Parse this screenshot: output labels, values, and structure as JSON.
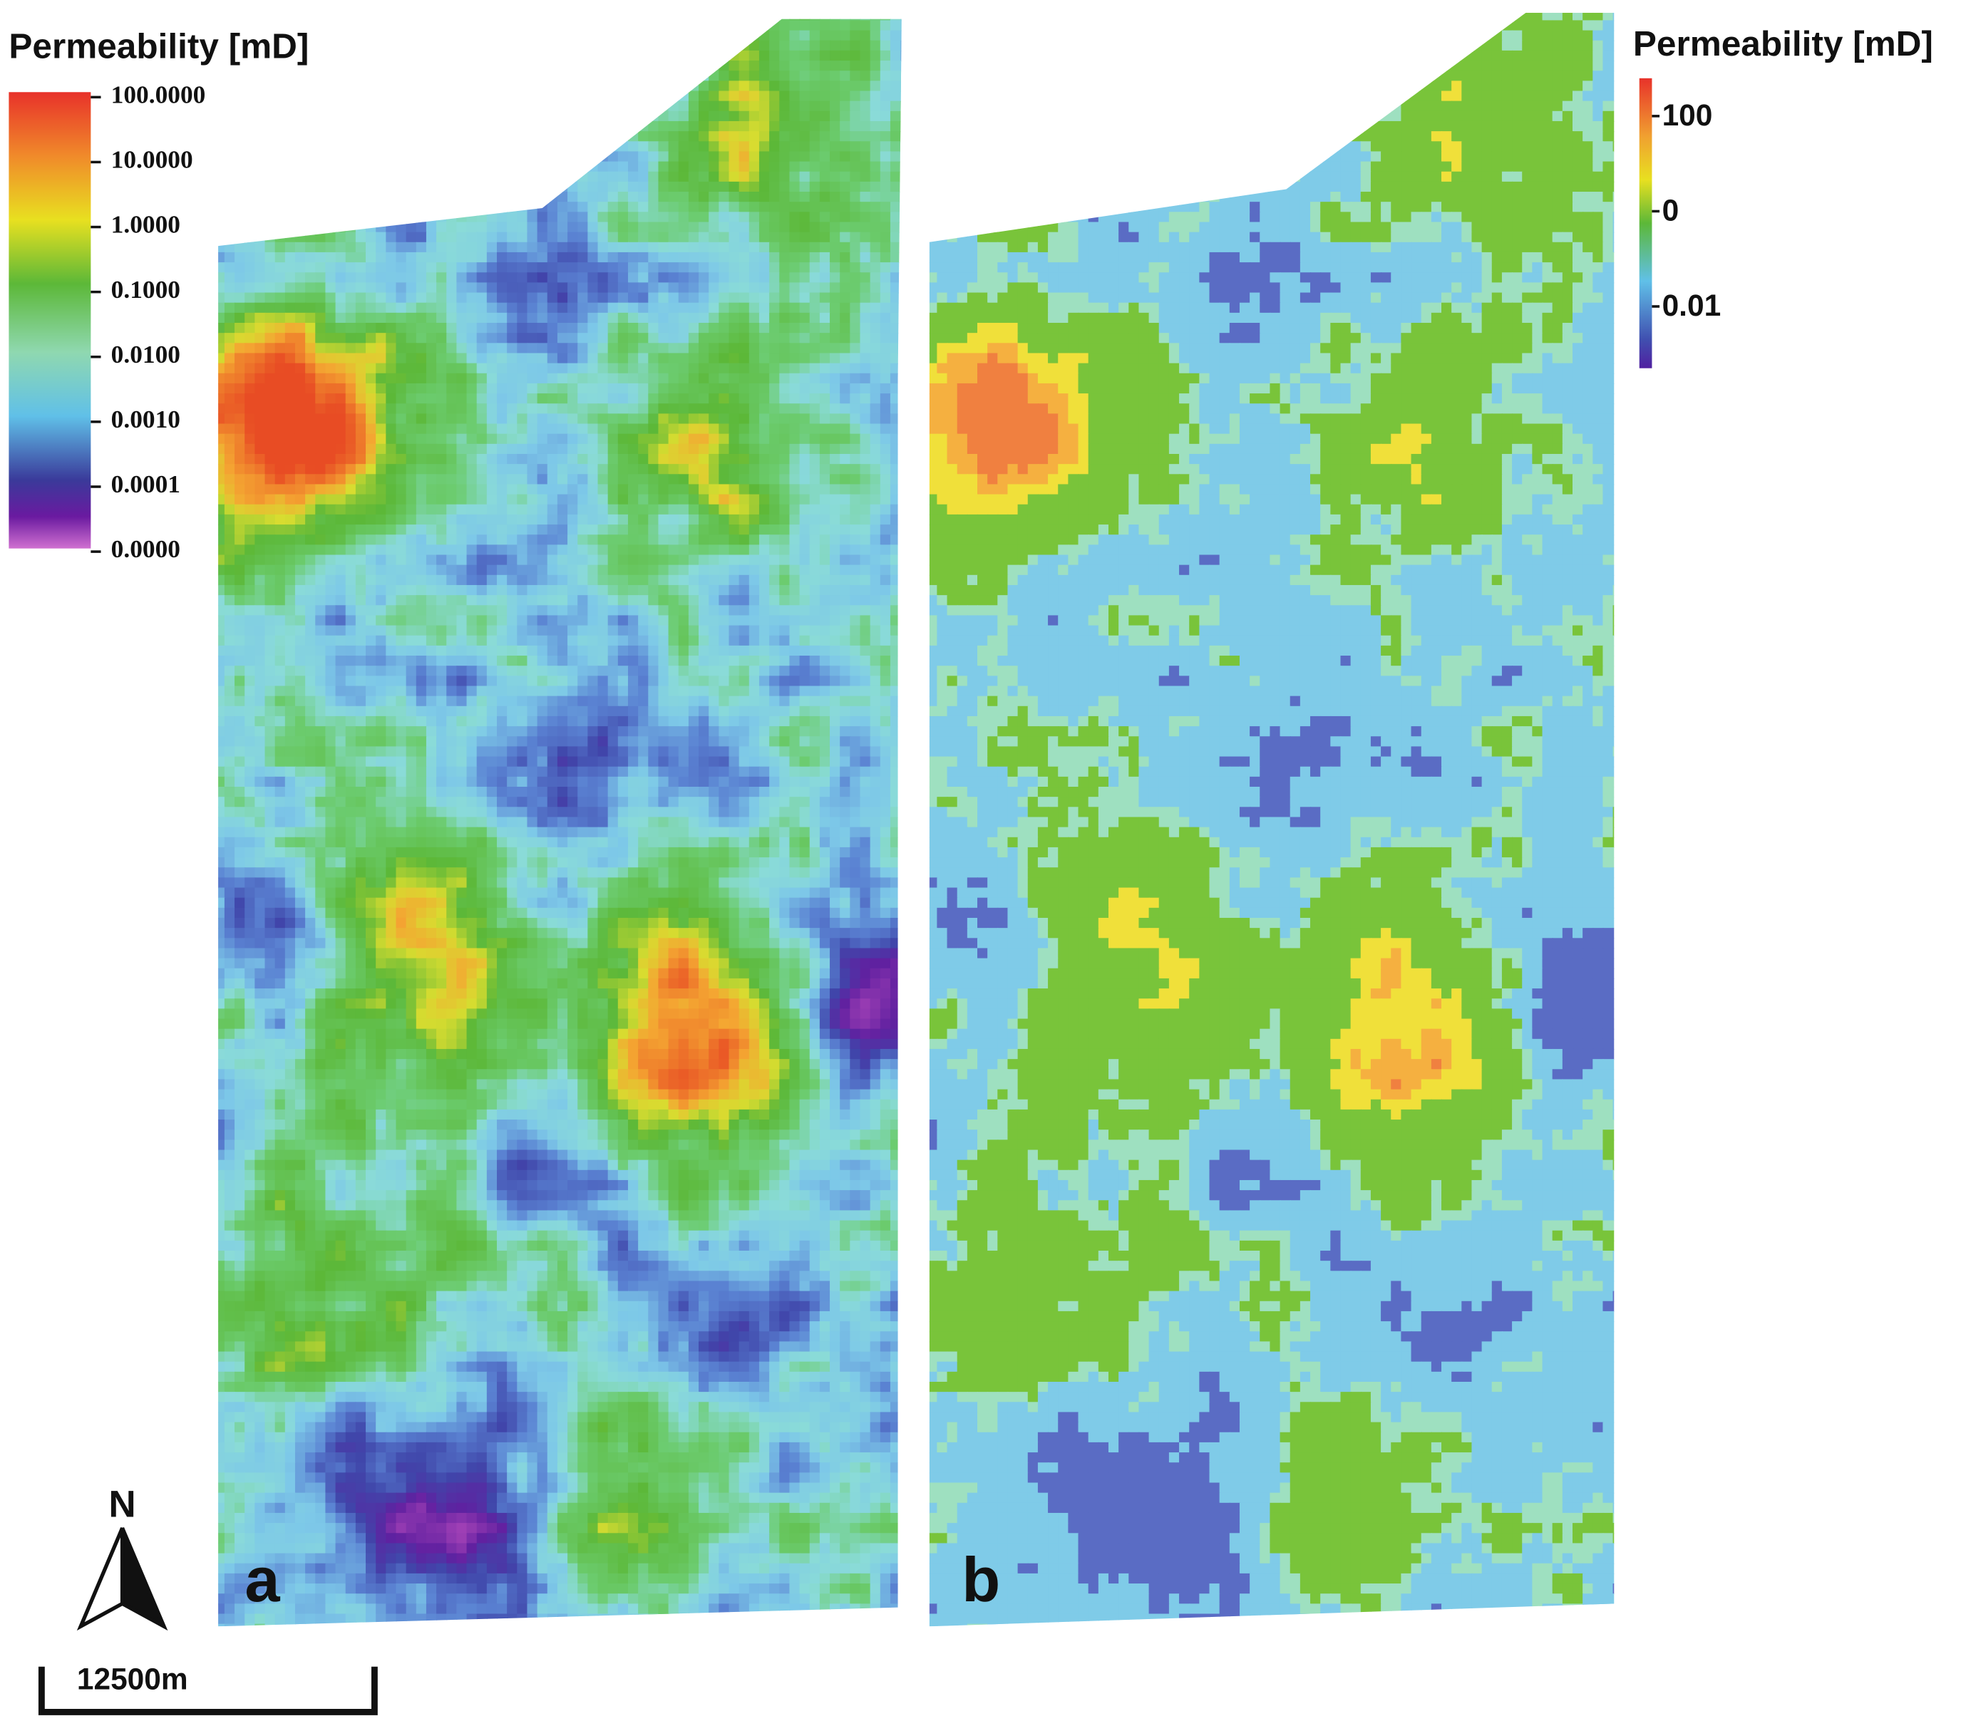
{
  "panel_a": {
    "label": "a",
    "legend": {
      "title": "Permeability [mD]",
      "ticks": [
        "100.0000",
        "10.0000",
        "1.0000",
        "0.1000",
        "0.0100",
        "0.0010",
        "0.0001",
        "0.0000"
      ]
    }
  },
  "panel_b": {
    "label": "b",
    "legend": {
      "title": "Permeability [mD]",
      "ticks": [
        "100",
        "0",
        "0.01"
      ]
    }
  },
  "north_arrow": {
    "label": "N"
  },
  "scale_bar": {
    "label": "12500m"
  }
}
